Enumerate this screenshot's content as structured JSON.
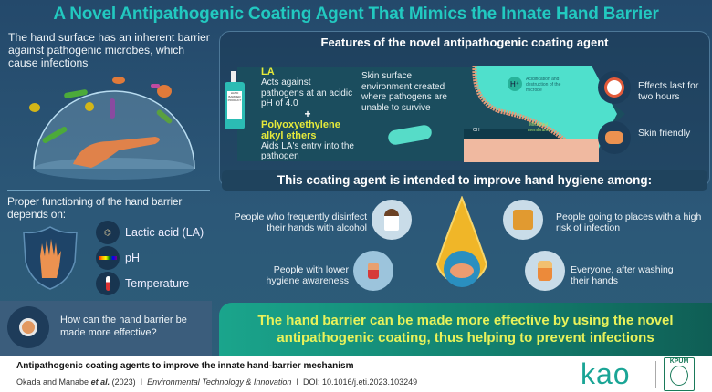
{
  "title": "A Novel Antipathogenic Coating Agent That Mimics the Innate Hand Barrier",
  "left": {
    "intro": "The hand surface has an inherent barrier against pathogenic microbes, which cause infections",
    "proper_functioning": "Proper functioning of the hand barrier depends on:",
    "factors": [
      {
        "label": "Lactic acid (LA)",
        "icon": "lactic-acid-molecule-icon"
      },
      {
        "label": "pH",
        "icon": "ph-spectrum-icon"
      },
      {
        "label": "Temperature",
        "icon": "thermometer-icon"
      }
    ],
    "question": "How can the hand barrier be made more effective?"
  },
  "features": {
    "heading": "Features of the novel antipathogenic coating agent",
    "bottle_label": "HAND BARRIER PRODUCT",
    "la_title": "LA",
    "la_desc": "Acts against pathogens at an acidic pH of 4.0",
    "plus": "+",
    "ether_title": "Polyoxyethylene alkyl ethers",
    "ether_desc": "Aids LA's entry into the pathogen",
    "skin_env": "Skin surface environment created where pathogens are unable to survive",
    "h_plus": "H⁺",
    "acidification": "Acidification and destruction of the microbe",
    "membrane": "Microbial membrane",
    "oh": "OH",
    "effects": "Effects last for two hours",
    "skin_friendly": "Skin friendly"
  },
  "hygiene": {
    "heading": "This coating agent is intended to improve hand hygiene among:",
    "groups": [
      "People who frequently disinfect their hands with alcohol",
      "People going to places with a high risk of infection",
      "People with lower hygiene awareness",
      "Everyone, after washing their hands"
    ]
  },
  "conclusion": "The hand barrier can be made more effective by using the novel antipathogenic coating, thus helping to prevent infections",
  "footer": {
    "paper_title": "Antipathogenic coating agents to improve the innate hand-barrier mechanism",
    "authors": "Okada and Manabe",
    "etal": "et al.",
    "year": "(2023)",
    "sep": "I",
    "journal": "Environmental Technology & Innovation",
    "doi": "DOI: 10.1016/j.eti.2023.103249",
    "logo_kao": "kao",
    "logo_kpum": "KPUM"
  },
  "colors": {
    "title": "#22c9c0",
    "conclusion_text": "#e9f25a",
    "highlight": "#e6ea3a",
    "kao": "#1aa596"
  }
}
